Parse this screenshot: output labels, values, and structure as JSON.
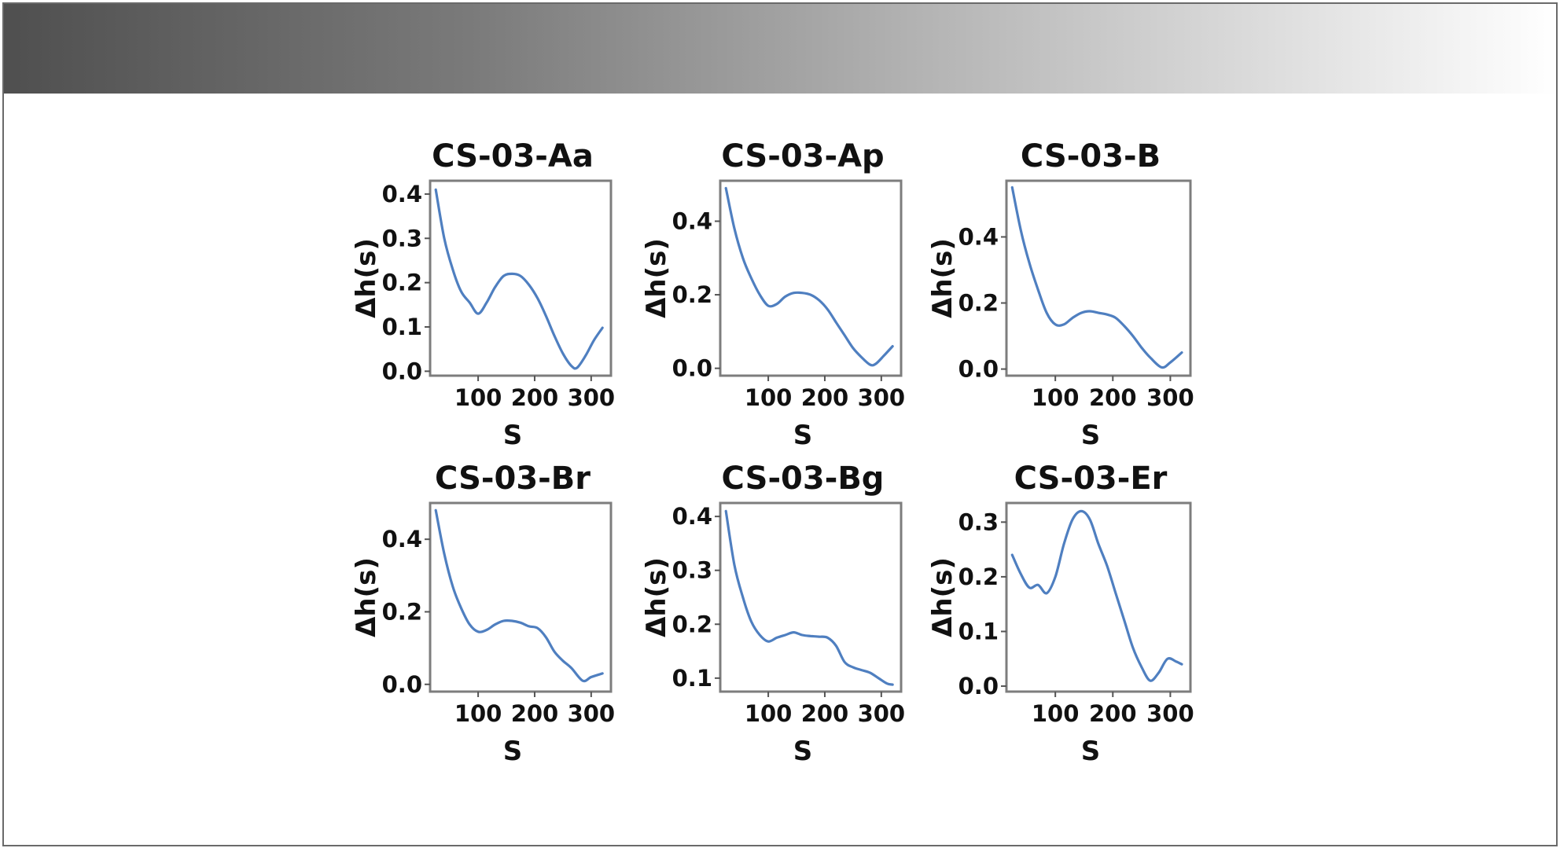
{
  "chart_data": [
    {
      "type": "line",
      "title": "CS-03-Aa",
      "xlabel": "S",
      "ylabel": "Δh(s)",
      "xlim": [
        15,
        335
      ],
      "ylim": [
        -0.01,
        0.43
      ],
      "xticks": [
        100,
        200,
        300
      ],
      "yticks": [
        0.0,
        0.1,
        0.2,
        0.3,
        0.4
      ],
      "ytick_labels": [
        "0.0",
        "0.1",
        "0.2",
        "0.3",
        "0.4"
      ],
      "series": [
        {
          "x": [
            25,
            40,
            55,
            70,
            85,
            100,
            115,
            130,
            145,
            160,
            175,
            190,
            205,
            220,
            235,
            250,
            265,
            275,
            290,
            305,
            320
          ],
          "values": [
            0.41,
            0.3,
            0.23,
            0.18,
            0.155,
            0.13,
            0.155,
            0.19,
            0.215,
            0.22,
            0.215,
            0.195,
            0.165,
            0.125,
            0.08,
            0.04,
            0.012,
            0.008,
            0.035,
            0.07,
            0.098
          ]
        }
      ]
    },
    {
      "type": "line",
      "title": "CS-03-Ap",
      "xlabel": "S",
      "ylabel": "Δh(s)",
      "xlim": [
        15,
        335
      ],
      "ylim": [
        -0.02,
        0.51
      ],
      "xticks": [
        100,
        200,
        300
      ],
      "yticks": [
        0.0,
        0.2,
        0.4
      ],
      "ytick_labels": [
        "0.0",
        "0.2",
        "0.4"
      ],
      "series": [
        {
          "x": [
            25,
            40,
            55,
            70,
            85,
            100,
            115,
            130,
            145,
            160,
            175,
            190,
            205,
            220,
            235,
            250,
            265,
            280,
            290,
            305,
            320
          ],
          "values": [
            0.49,
            0.38,
            0.3,
            0.245,
            0.2,
            0.17,
            0.175,
            0.195,
            0.205,
            0.205,
            0.2,
            0.185,
            0.16,
            0.125,
            0.09,
            0.055,
            0.03,
            0.01,
            0.012,
            0.035,
            0.06
          ]
        }
      ]
    },
    {
      "type": "line",
      "title": "CS-03-B",
      "xlabel": "S",
      "ylabel": "Δh(s)",
      "xlim": [
        15,
        335
      ],
      "ylim": [
        -0.02,
        0.57
      ],
      "xticks": [
        100,
        200,
        300
      ],
      "yticks": [
        0.0,
        0.2,
        0.4
      ],
      "ytick_labels": [
        "0.0",
        "0.2",
        "0.4"
      ],
      "series": [
        {
          "x": [
            25,
            40,
            55,
            70,
            85,
            100,
            115,
            130,
            145,
            160,
            175,
            190,
            205,
            220,
            235,
            250,
            265,
            285,
            300,
            320
          ],
          "values": [
            0.55,
            0.42,
            0.32,
            0.24,
            0.17,
            0.135,
            0.135,
            0.155,
            0.17,
            0.175,
            0.17,
            0.165,
            0.155,
            0.13,
            0.1,
            0.065,
            0.035,
            0.005,
            0.02,
            0.05
          ]
        }
      ]
    },
    {
      "type": "line",
      "title": "CS-03-Br",
      "xlabel": "S",
      "ylabel": "Δh(s)",
      "xlim": [
        15,
        335
      ],
      "ylim": [
        -0.02,
        0.5
      ],
      "xticks": [
        100,
        200,
        300
      ],
      "yticks": [
        0.0,
        0.2,
        0.4
      ],
      "ytick_labels": [
        "0.0",
        "0.2",
        "0.4"
      ],
      "series": [
        {
          "x": [
            25,
            40,
            55,
            70,
            85,
            100,
            115,
            130,
            145,
            160,
            175,
            190,
            205,
            220,
            235,
            250,
            265,
            285,
            300,
            320
          ],
          "values": [
            0.48,
            0.36,
            0.27,
            0.21,
            0.165,
            0.145,
            0.15,
            0.165,
            0.175,
            0.175,
            0.17,
            0.16,
            0.155,
            0.13,
            0.09,
            0.065,
            0.045,
            0.01,
            0.02,
            0.03
          ]
        }
      ]
    },
    {
      "type": "line",
      "title": "CS-03-Bg",
      "xlabel": "S",
      "ylabel": "Δh(s)",
      "xlim": [
        15,
        335
      ],
      "ylim": [
        0.075,
        0.425
      ],
      "xticks": [
        100,
        200,
        300
      ],
      "yticks": [
        0.1,
        0.2,
        0.3,
        0.4
      ],
      "ytick_labels": [
        "0.1",
        "0.2",
        "0.3",
        "0.4"
      ],
      "series": [
        {
          "x": [
            25,
            40,
            55,
            70,
            85,
            100,
            115,
            130,
            145,
            160,
            175,
            190,
            205,
            220,
            235,
            250,
            265,
            280,
            295,
            310,
            320
          ],
          "values": [
            0.41,
            0.31,
            0.25,
            0.205,
            0.18,
            0.168,
            0.175,
            0.18,
            0.185,
            0.18,
            0.178,
            0.177,
            0.175,
            0.16,
            0.13,
            0.12,
            0.115,
            0.11,
            0.1,
            0.09,
            0.088
          ]
        }
      ]
    },
    {
      "type": "line",
      "title": "CS-03-Er",
      "xlabel": "S",
      "ylabel": "Δh(s)",
      "xlim": [
        15,
        335
      ],
      "ylim": [
        -0.01,
        0.335
      ],
      "xticks": [
        100,
        200,
        300
      ],
      "yticks": [
        0.0,
        0.1,
        0.2,
        0.3
      ],
      "ytick_labels": [
        "0.0",
        "0.1",
        "0.2",
        "0.3"
      ],
      "series": [
        {
          "x": [
            25,
            40,
            55,
            70,
            85,
            100,
            115,
            130,
            145,
            160,
            175,
            190,
            205,
            220,
            235,
            250,
            265,
            280,
            295,
            310,
            320
          ],
          "values": [
            0.24,
            0.205,
            0.18,
            0.185,
            0.17,
            0.2,
            0.26,
            0.305,
            0.32,
            0.305,
            0.26,
            0.22,
            0.17,
            0.12,
            0.07,
            0.035,
            0.01,
            0.025,
            0.05,
            0.045,
            0.04
          ]
        }
      ]
    }
  ]
}
